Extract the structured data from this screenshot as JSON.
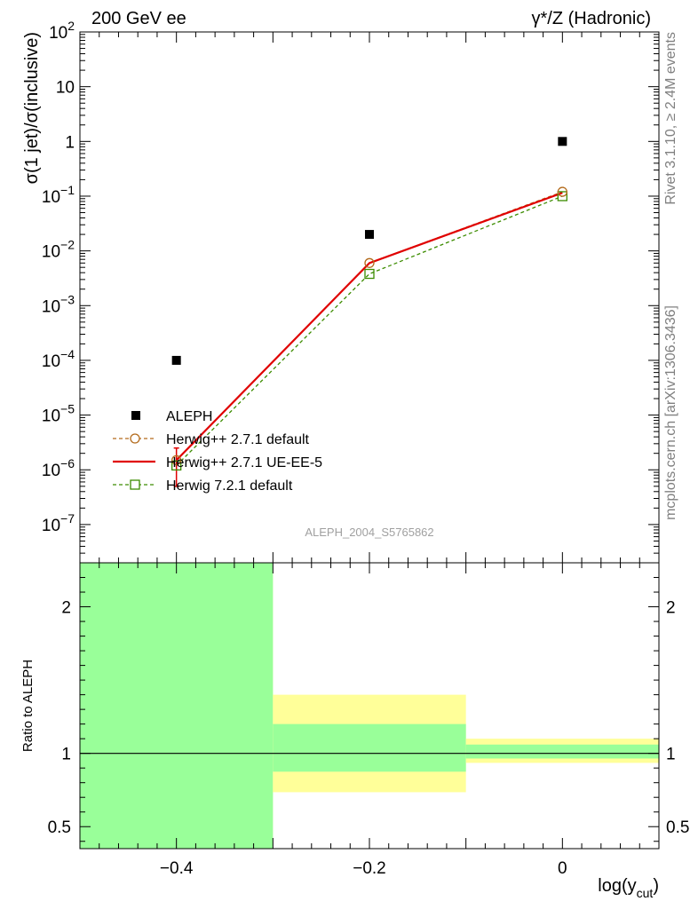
{
  "chart_data": [
    {
      "type": "scatter",
      "title_left": "200 GeV ee",
      "title_right": "γ*/Z (Hadronic)",
      "ylabel": "σ(1 jet)/σ(inclusive)",
      "yscale": "log",
      "ylim": [
        2e-08,
        100
      ],
      "xlim": [
        -0.5,
        0.1
      ],
      "y_tick_labels": [
        "10^2",
        "10",
        "1",
        "10^-1",
        "10^-2",
        "10^-3",
        "10^-4",
        "10^-5",
        "10^-6",
        "10^-7"
      ],
      "watermark": "ALEPH_2004_S5765862",
      "series": [
        {
          "name": "ALEPH",
          "style": "black-square",
          "x": [
            -0.4,
            -0.2,
            0.0
          ],
          "y": [
            0.0001,
            0.02,
            1.0
          ]
        },
        {
          "name": "Herwig++ 2.7.1 default",
          "style": "brown-dashed-circle",
          "x": [
            -0.4,
            -0.2,
            0.0
          ],
          "y": [
            1.5e-06,
            0.006,
            0.12
          ]
        },
        {
          "name": "Herwig++ 2.7.1 UE-EE-5",
          "style": "red-solid",
          "x": [
            -0.4,
            -0.2,
            0.0
          ],
          "y": [
            1.5e-06,
            0.006,
            0.115
          ]
        },
        {
          "name": "Herwig 7.2.1 default",
          "style": "green-dashed-square",
          "x": [
            -0.4,
            -0.2,
            0.0
          ],
          "y": [
            1.2e-06,
            0.0038,
            0.1
          ]
        }
      ],
      "error_bars": [
        {
          "x": -0.4,
          "low": 5e-07,
          "high": 2.5e-06
        }
      ]
    },
    {
      "type": "ratio",
      "ylabel": "Ratio to ALEPH",
      "ylim": [
        0.35,
        2.3
      ],
      "y_ticks": [
        0.5,
        1,
        2
      ],
      "y_tick_labels": [
        "0.5",
        "1",
        "2"
      ],
      "xlabel": "log(y",
      "xlabel_sub": "cut",
      "xlabel_close": ")",
      "x_ticks": [
        -0.4,
        -0.2,
        0
      ],
      "x_tick_labels": [
        "−0.4",
        "−0.2",
        "0"
      ],
      "bands": [
        {
          "x0": -0.5,
          "x1": -0.3,
          "yellow": [
            0.0,
            10.0
          ],
          "green": [
            0.0,
            10.0
          ]
        },
        {
          "x0": -0.3,
          "x1": -0.1,
          "yellow": [
            0.735,
            1.4
          ],
          "green": [
            0.875,
            1.2
          ]
        },
        {
          "x0": -0.1,
          "x1": 0.1,
          "yellow": [
            0.935,
            1.1
          ],
          "green": [
            0.965,
            1.06
          ]
        }
      ]
    }
  ],
  "side_text": {
    "rivet": "Rivet 3.1.10, ≥ 2.4M events",
    "mcplots": "mcplots.cern.ch [arXiv:1306.3436]"
  },
  "colors": {
    "data": "#000000",
    "herwig_default": "#b36b1c",
    "herwig_ueee5": "#e00000",
    "herwig7": "#3c8c00",
    "band_yellow": "#ffff99",
    "band_green": "#99ff99"
  }
}
